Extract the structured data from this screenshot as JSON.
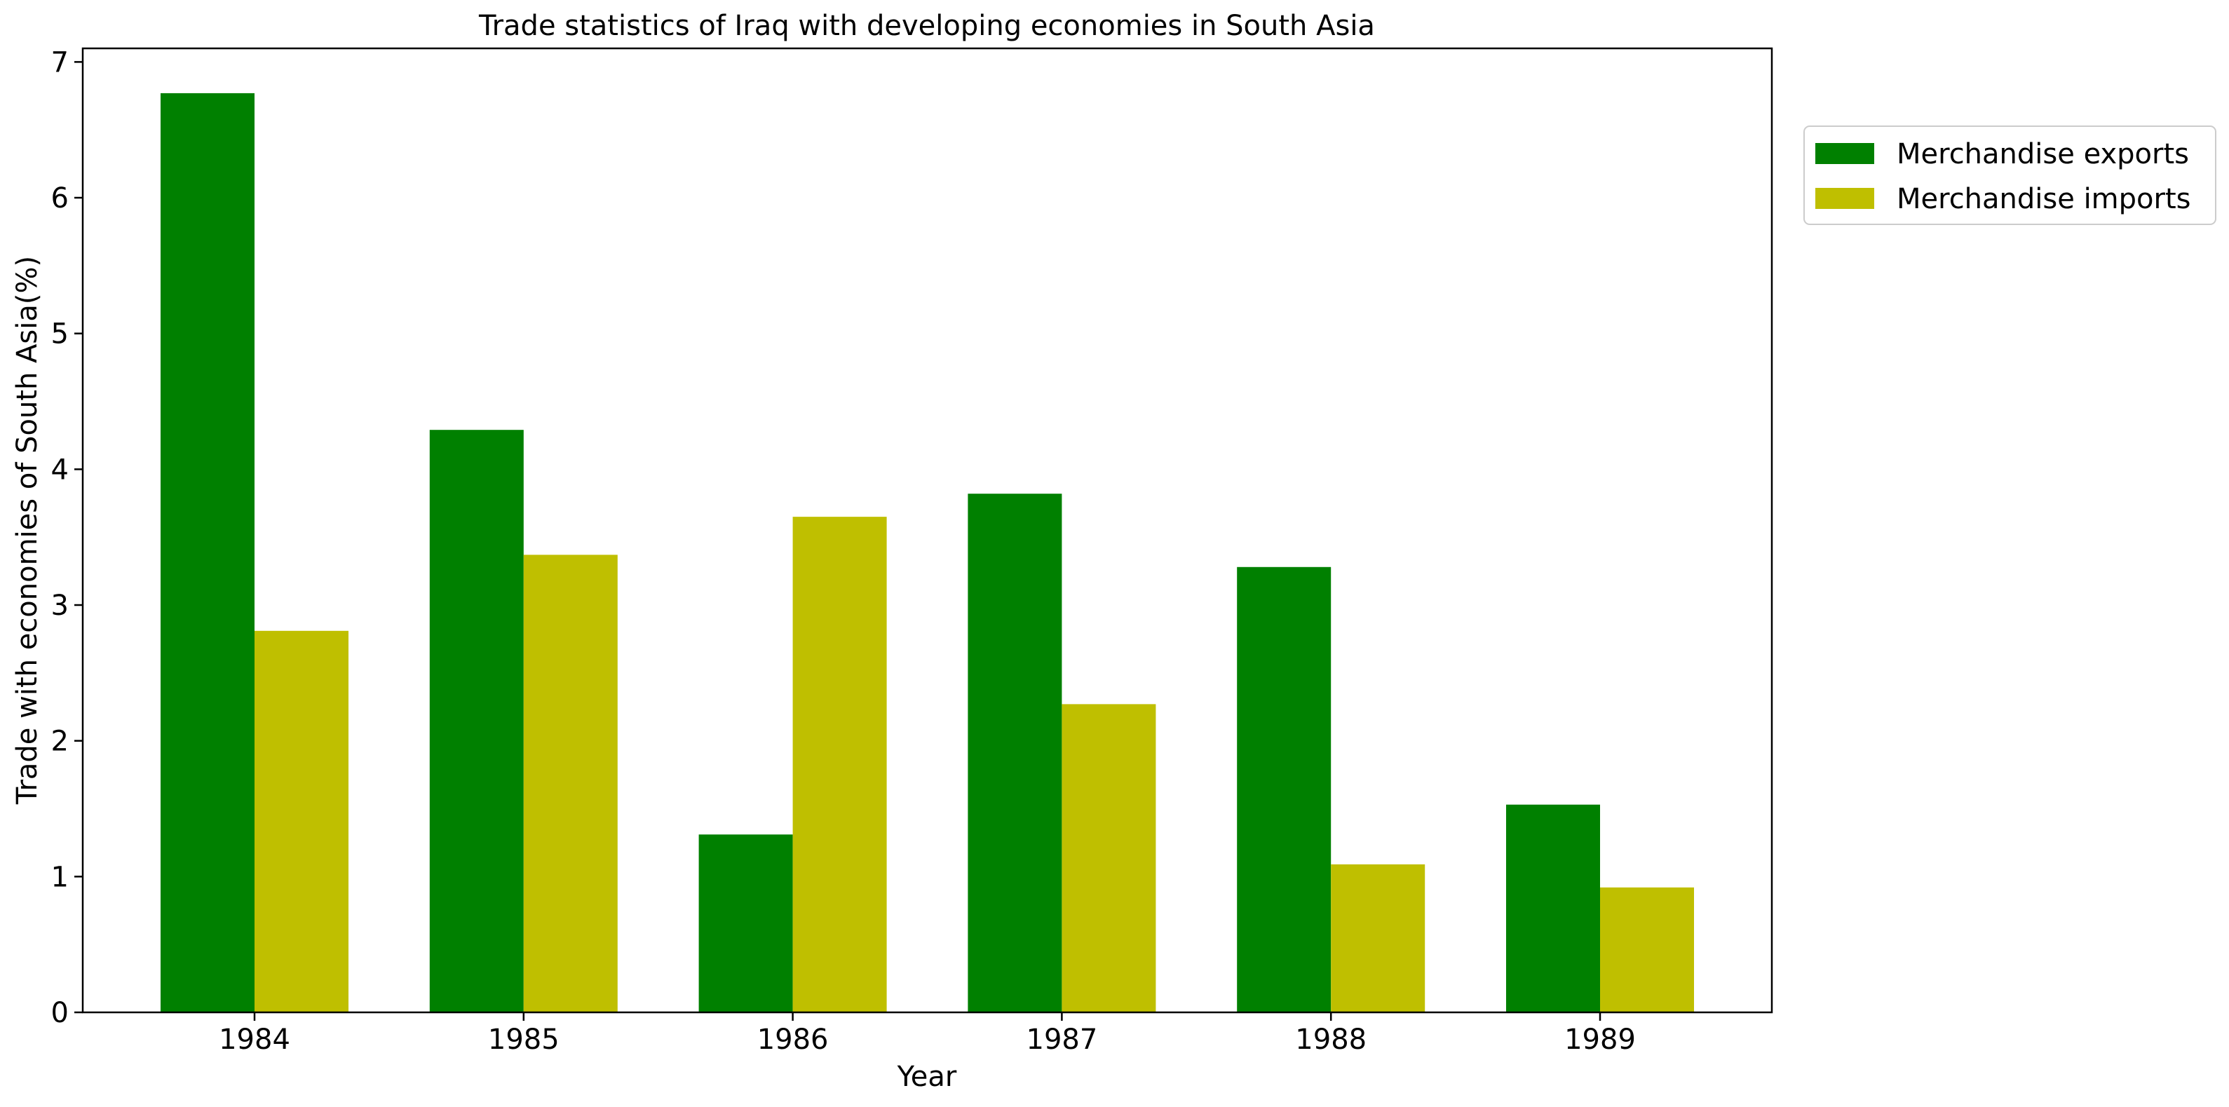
{
  "chart_data": {
    "type": "bar",
    "title": "Trade statistics of Iraq with developing economies in South Asia",
    "xlabel": "Year",
    "ylabel": "Trade with economies of South Asia(%)",
    "categories": [
      "1984",
      "1985",
      "1986",
      "1987",
      "1988",
      "1989"
    ],
    "series": [
      {
        "name": "Merchandise exports",
        "color": "#008000",
        "values": [
          6.77,
          4.29,
          1.31,
          3.82,
          3.28,
          1.53
        ]
      },
      {
        "name": "Merchandise imports",
        "color": "#bfbf00",
        "values": [
          2.81,
          3.37,
          3.65,
          2.27,
          1.09,
          0.92
        ]
      }
    ],
    "ylim": [
      0,
      7.1
    ],
    "yticks": [
      0,
      1,
      2,
      3,
      4,
      5,
      6,
      7
    ],
    "grid": false,
    "legend_position": "outside-top-right"
  }
}
